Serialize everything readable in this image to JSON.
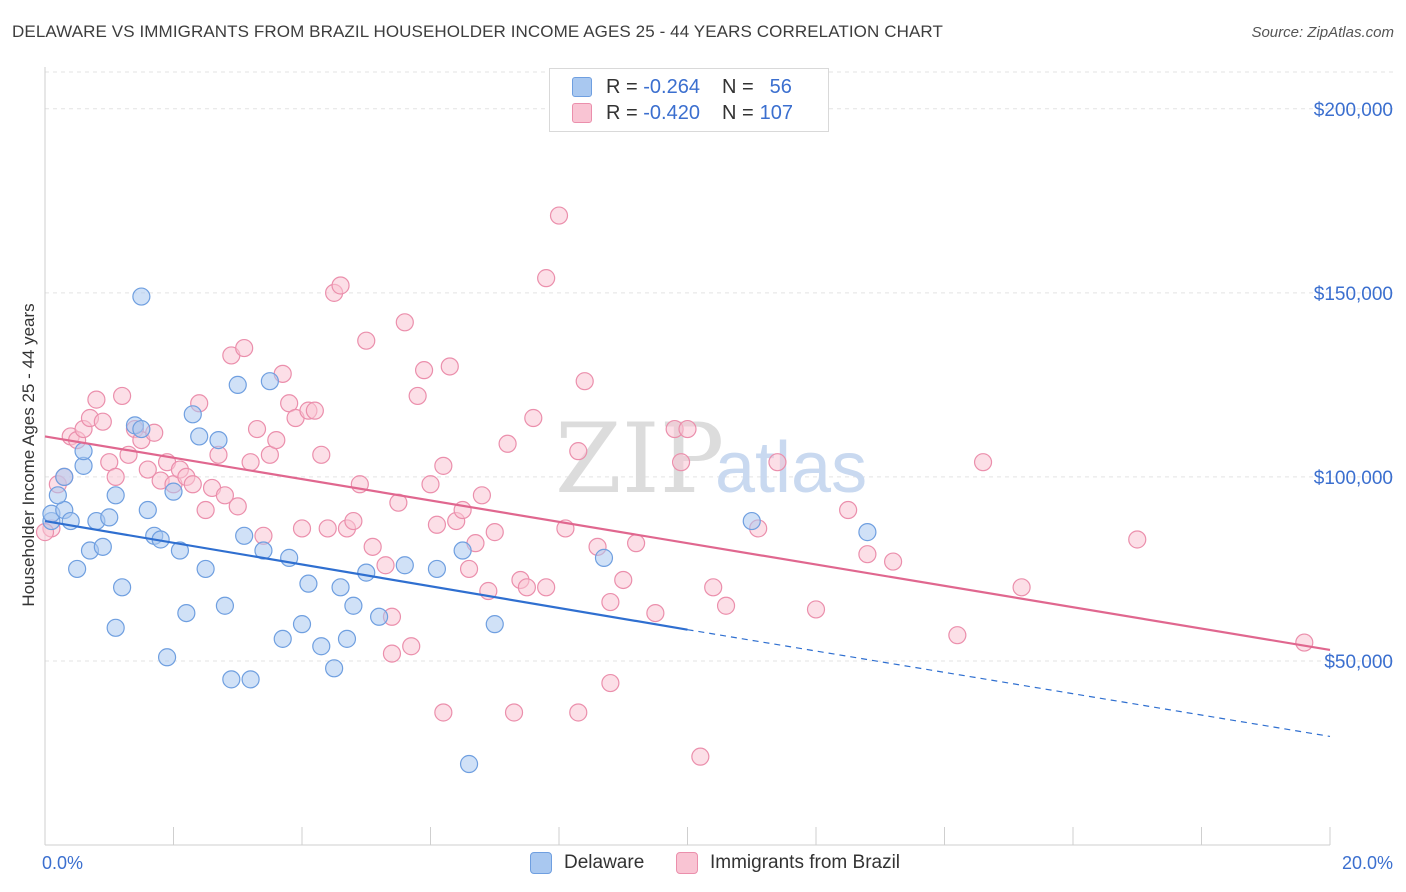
{
  "title": "DELAWARE VS IMMIGRANTS FROM BRAZIL HOUSEHOLDER INCOME AGES 25 - 44 YEARS CORRELATION CHART",
  "source": "Source: ZipAtlas.com",
  "watermark": {
    "zip": "ZIP",
    "atlas": "atlas"
  },
  "legend_stats": [
    {
      "r_label": "R =",
      "r_value": "-0.264",
      "n_label": "N =",
      "n_value": "56",
      "color": "#a9c8f0",
      "border": "#6f9fe0"
    },
    {
      "r_label": "R =",
      "r_value": "-0.420",
      "n_label": "N =",
      "n_value": "107",
      "color": "#f9c4d3",
      "border": "#eb8fac"
    }
  ],
  "bottom_legend": [
    {
      "label": "Delaware",
      "color": "#a9c8f0",
      "border": "#6f9fe0"
    },
    {
      "label": "Immigrants from Brazil",
      "color": "#f9c4d3",
      "border": "#eb8fac"
    }
  ],
  "chart_data": {
    "type": "scatter",
    "ylabel": "Householder Income Ages 25 - 44 years",
    "xlim": [
      0,
      20
    ],
    "ylim": [
      0,
      210000
    ],
    "x_tick_labels": [
      {
        "value": 0,
        "label": "0.0%"
      },
      {
        "value": 20,
        "label": "20.0%"
      }
    ],
    "y_tick_labels": [
      {
        "value": 50000,
        "label": "$50,000"
      },
      {
        "value": 100000,
        "label": "$100,000"
      },
      {
        "value": 150000,
        "label": "$150,000"
      },
      {
        "value": 200000,
        "label": "$200,000"
      }
    ],
    "grid": true,
    "series": [
      {
        "name": "Delaware",
        "color": "#6f9fe0",
        "fill": "#a9c8f0",
        "line_color": "#2f6fd0",
        "trend": {
          "x0": 0,
          "y0": 88000,
          "x1": 10,
          "y1": 58500,
          "dash_to_x": 20,
          "dash_to_y": 29500
        },
        "points": [
          [
            0.1,
            88000
          ],
          [
            0.1,
            90000
          ],
          [
            0.3,
            91000
          ],
          [
            0.4,
            88000
          ],
          [
            0.5,
            75000
          ],
          [
            0.6,
            103000
          ],
          [
            0.7,
            80000
          ],
          [
            0.8,
            88000
          ],
          [
            0.9,
            81000
          ],
          [
            1.0,
            89000
          ],
          [
            1.1,
            59000
          ],
          [
            1.1,
            95000
          ],
          [
            1.2,
            70000
          ],
          [
            1.4,
            114000
          ],
          [
            1.5,
            149000
          ],
          [
            1.6,
            91000
          ],
          [
            1.7,
            84000
          ],
          [
            1.8,
            83000
          ],
          [
            1.9,
            51000
          ],
          [
            2.0,
            96000
          ],
          [
            2.1,
            80000
          ],
          [
            2.2,
            63000
          ],
          [
            2.3,
            117000
          ],
          [
            2.4,
            111000
          ],
          [
            2.5,
            75000
          ],
          [
            2.7,
            110000
          ],
          [
            2.8,
            65000
          ],
          [
            2.9,
            45000
          ],
          [
            3.0,
            125000
          ],
          [
            3.1,
            84000
          ],
          [
            3.2,
            45000
          ],
          [
            3.4,
            80000
          ],
          [
            3.5,
            126000
          ],
          [
            3.7,
            56000
          ],
          [
            3.8,
            78000
          ],
          [
            4.0,
            60000
          ],
          [
            4.1,
            71000
          ],
          [
            4.3,
            54000
          ],
          [
            4.5,
            48000
          ],
          [
            4.6,
            70000
          ],
          [
            4.7,
            56000
          ],
          [
            4.8,
            65000
          ],
          [
            5.0,
            74000
          ],
          [
            5.2,
            62000
          ],
          [
            5.6,
            76000
          ],
          [
            6.1,
            75000
          ],
          [
            6.5,
            80000
          ],
          [
            7.0,
            60000
          ],
          [
            0.3,
            100000
          ],
          [
            0.2,
            95000
          ],
          [
            1.5,
            113000
          ],
          [
            0.6,
            107000
          ],
          [
            6.6,
            22000
          ],
          [
            8.7,
            78000
          ],
          [
            11.0,
            88000
          ],
          [
            12.8,
            85000
          ]
        ]
      },
      {
        "name": "Immigrants from Brazil",
        "color": "#eb8fac",
        "fill": "#f9c4d3",
        "line_color": "#e0678f",
        "trend": {
          "x0": 0,
          "y0": 111000,
          "x1": 20,
          "y1": 53000
        },
        "points": [
          [
            0.1,
            86000
          ],
          [
            0.2,
            98000
          ],
          [
            0.3,
            100000
          ],
          [
            0.4,
            111000
          ],
          [
            0.5,
            110000
          ],
          [
            0.6,
            113000
          ],
          [
            0.7,
            116000
          ],
          [
            0.8,
            121000
          ],
          [
            0.9,
            115000
          ],
          [
            1.0,
            104000
          ],
          [
            1.1,
            100000
          ],
          [
            1.2,
            122000
          ],
          [
            1.3,
            106000
          ],
          [
            1.4,
            113000
          ],
          [
            1.5,
            110000
          ],
          [
            1.6,
            102000
          ],
          [
            1.7,
            112000
          ],
          [
            1.8,
            99000
          ],
          [
            1.9,
            104000
          ],
          [
            2.0,
            98000
          ],
          [
            2.1,
            102000
          ],
          [
            2.2,
            100000
          ],
          [
            2.3,
            98000
          ],
          [
            2.4,
            120000
          ],
          [
            2.5,
            91000
          ],
          [
            2.6,
            97000
          ],
          [
            2.7,
            106000
          ],
          [
            2.8,
            95000
          ],
          [
            2.9,
            133000
          ],
          [
            3.0,
            92000
          ],
          [
            3.1,
            135000
          ],
          [
            3.2,
            104000
          ],
          [
            3.3,
            113000
          ],
          [
            3.4,
            84000
          ],
          [
            3.5,
            106000
          ],
          [
            3.6,
            110000
          ],
          [
            3.7,
            128000
          ],
          [
            3.8,
            120000
          ],
          [
            3.9,
            116000
          ],
          [
            4.0,
            86000
          ],
          [
            4.1,
            118000
          ],
          [
            4.2,
            118000
          ],
          [
            4.3,
            106000
          ],
          [
            4.4,
            86000
          ],
          [
            4.5,
            150000
          ],
          [
            4.6,
            152000
          ],
          [
            4.7,
            86000
          ],
          [
            4.8,
            88000
          ],
          [
            4.9,
            98000
          ],
          [
            5.0,
            137000
          ],
          [
            5.1,
            81000
          ],
          [
            5.3,
            76000
          ],
          [
            5.4,
            62000
          ],
          [
            5.5,
            93000
          ],
          [
            5.6,
            142000
          ],
          [
            5.7,
            54000
          ],
          [
            5.8,
            122000
          ],
          [
            5.9,
            129000
          ],
          [
            6.0,
            98000
          ],
          [
            6.1,
            87000
          ],
          [
            6.2,
            103000
          ],
          [
            6.3,
            130000
          ],
          [
            6.4,
            88000
          ],
          [
            6.5,
            91000
          ],
          [
            6.6,
            75000
          ],
          [
            6.7,
            82000
          ],
          [
            6.8,
            95000
          ],
          [
            6.9,
            69000
          ],
          [
            7.0,
            85000
          ],
          [
            7.2,
            109000
          ],
          [
            7.4,
            72000
          ],
          [
            7.5,
            70000
          ],
          [
            7.6,
            116000
          ],
          [
            7.8,
            70000
          ],
          [
            8.0,
            171000
          ],
          [
            8.1,
            86000
          ],
          [
            8.3,
            107000
          ],
          [
            8.4,
            126000
          ],
          [
            8.6,
            81000
          ],
          [
            8.8,
            66000
          ],
          [
            9.0,
            72000
          ],
          [
            9.2,
            82000
          ],
          [
            9.5,
            63000
          ],
          [
            9.8,
            113000
          ],
          [
            9.9,
            104000
          ],
          [
            10.0,
            113000
          ],
          [
            10.2,
            24000
          ],
          [
            10.4,
            70000
          ],
          [
            10.6,
            65000
          ],
          [
            11.1,
            86000
          ],
          [
            11.4,
            104000
          ],
          [
            12.0,
            64000
          ],
          [
            12.5,
            91000
          ],
          [
            12.8,
            79000
          ],
          [
            13.2,
            77000
          ],
          [
            14.2,
            57000
          ],
          [
            14.6,
            104000
          ],
          [
            15.2,
            70000
          ],
          [
            17.0,
            83000
          ],
          [
            19.6,
            55000
          ],
          [
            7.8,
            154000
          ],
          [
            5.4,
            52000
          ],
          [
            6.2,
            36000
          ],
          [
            7.3,
            36000
          ],
          [
            8.3,
            36000
          ],
          [
            8.8,
            44000
          ],
          [
            0.0,
            85000
          ]
        ]
      }
    ]
  }
}
